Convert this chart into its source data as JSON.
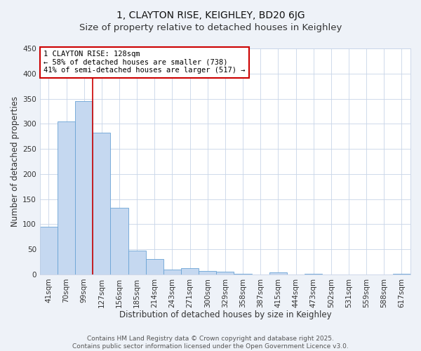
{
  "title": "1, CLAYTON RISE, KEIGHLEY, BD20 6JG",
  "subtitle": "Size of property relative to detached houses in Keighley",
  "xlabel": "Distribution of detached houses by size in Keighley",
  "ylabel": "Number of detached properties",
  "bin_labels": [
    "41sqm",
    "70sqm",
    "99sqm",
    "127sqm",
    "156sqm",
    "185sqm",
    "214sqm",
    "243sqm",
    "271sqm",
    "300sqm",
    "329sqm",
    "358sqm",
    "387sqm",
    "415sqm",
    "444sqm",
    "473sqm",
    "502sqm",
    "531sqm",
    "559sqm",
    "588sqm",
    "617sqm"
  ],
  "bar_values": [
    95,
    305,
    345,
    282,
    133,
    47,
    30,
    10,
    13,
    7,
    6,
    1,
    0,
    4,
    0,
    1,
    0,
    0,
    0,
    0,
    1
  ],
  "bar_color": "#c5d8f0",
  "bar_edge_color": "#6aa3d5",
  "property_line_index": 3,
  "property_line_color": "#cc0000",
  "annotation_text": "1 CLAYTON RISE: 128sqm\n← 58% of detached houses are smaller (738)\n41% of semi-detached houses are larger (517) →",
  "annotation_box_color": "#ffffff",
  "annotation_box_edge_color": "#cc0000",
  "ylim": [
    0,
    450
  ],
  "yticks": [
    0,
    50,
    100,
    150,
    200,
    250,
    300,
    350,
    400,
    450
  ],
  "footer_line1": "Contains HM Land Registry data © Crown copyright and database right 2025.",
  "footer_line2": "Contains public sector information licensed under the Open Government Licence v3.0.",
  "bg_color": "#eef2f8",
  "plot_bg_color": "#ffffff",
  "grid_color": "#c8d4e8",
  "title_fontsize": 10,
  "axis_label_fontsize": 8.5,
  "tick_fontsize": 7.5,
  "annotation_fontsize": 7.5,
  "footer_fontsize": 6.5
}
